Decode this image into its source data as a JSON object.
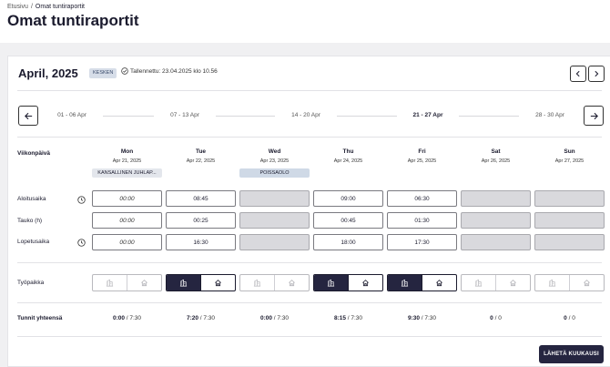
{
  "breadcrumb": {
    "home": "Etusivu",
    "separator": "/",
    "current": "Omat tuntiraportit"
  },
  "page": {
    "title": "Omat tuntiraportit"
  },
  "report": {
    "month": "April, 2025",
    "status": "KESKEN",
    "saved": "Tallennettu: 23.04.2025 klo 10.56"
  },
  "weeks": [
    "01 - 06 Apr",
    "07 - 13 Apr",
    "14 - 20 Apr",
    "21 - 27 Apr",
    "28 - 30 Apr"
  ],
  "active_week_index": 3,
  "row_labels": {
    "weekday": "Viikonpäivä",
    "start": "Aloitusaika",
    "break": "Tauko (h)",
    "end": "Lopetusaika",
    "workplace": "Työpaikka",
    "total": "Tunnit yhteensä"
  },
  "days": [
    {
      "name": "Mon",
      "date": "Apr 21, 2025",
      "tag": "KANSALLINEN JUHLAP...",
      "start": "00:00",
      "break": "00:00",
      "end": "00:00",
      "total": "0:00",
      "target": " / 7:30"
    },
    {
      "name": "Tue",
      "date": "Apr 22, 2025",
      "tag": "",
      "start": "08:45",
      "break": "00:25",
      "end": "16:30",
      "total": "7:20",
      "target": " / 7:30"
    },
    {
      "name": "Wed",
      "date": "Apr 23, 2025",
      "tag": "POISSAOLO",
      "start": "",
      "break": "",
      "end": "",
      "total": "0:00",
      "target": " / 7:30"
    },
    {
      "name": "Thu",
      "date": "Apr 24, 2025",
      "tag": "",
      "start": "09:00",
      "break": "00:45",
      "end": "18:00",
      "total": "8:15",
      "target": " / 7:30"
    },
    {
      "name": "Fri",
      "date": "Apr 25, 2025",
      "tag": "",
      "start": "06:30",
      "break": "01:30",
      "end": "17:30",
      "total": "9:30",
      "target": " / 7:30"
    },
    {
      "name": "Sat",
      "date": "Apr 26, 2025",
      "tag": "",
      "start": "",
      "break": "",
      "end": "",
      "total": "0",
      "target": " / 0"
    },
    {
      "name": "Sun",
      "date": "Apr 27, 2025",
      "tag": "",
      "start": "",
      "break": "",
      "end": "",
      "total": "0",
      "target": " / 0"
    }
  ],
  "workplace": [
    {
      "office_selected": false,
      "active": false
    },
    {
      "office_selected": true,
      "active": true
    },
    {
      "office_selected": false,
      "active": false
    },
    {
      "office_selected": true,
      "active": true
    },
    {
      "office_selected": true,
      "active": true
    },
    {
      "office_selected": false,
      "active": false
    },
    {
      "office_selected": false,
      "active": false
    }
  ],
  "icons": {
    "prev": "chevron-left-icon",
    "next": "chevron-right-icon",
    "week_prev": "arrow-left-icon",
    "week_next": "arrow-right-icon",
    "clock": "clock-icon",
    "saved": "check-circle-icon",
    "office": "office-building-icon",
    "home": "home-icon"
  },
  "actions": {
    "submit": "LÄHETÄ KUUKAUSI"
  },
  "colors": {
    "primary": "#252540",
    "disabled": "#d9d9dd",
    "badge": "#d6dde8"
  }
}
